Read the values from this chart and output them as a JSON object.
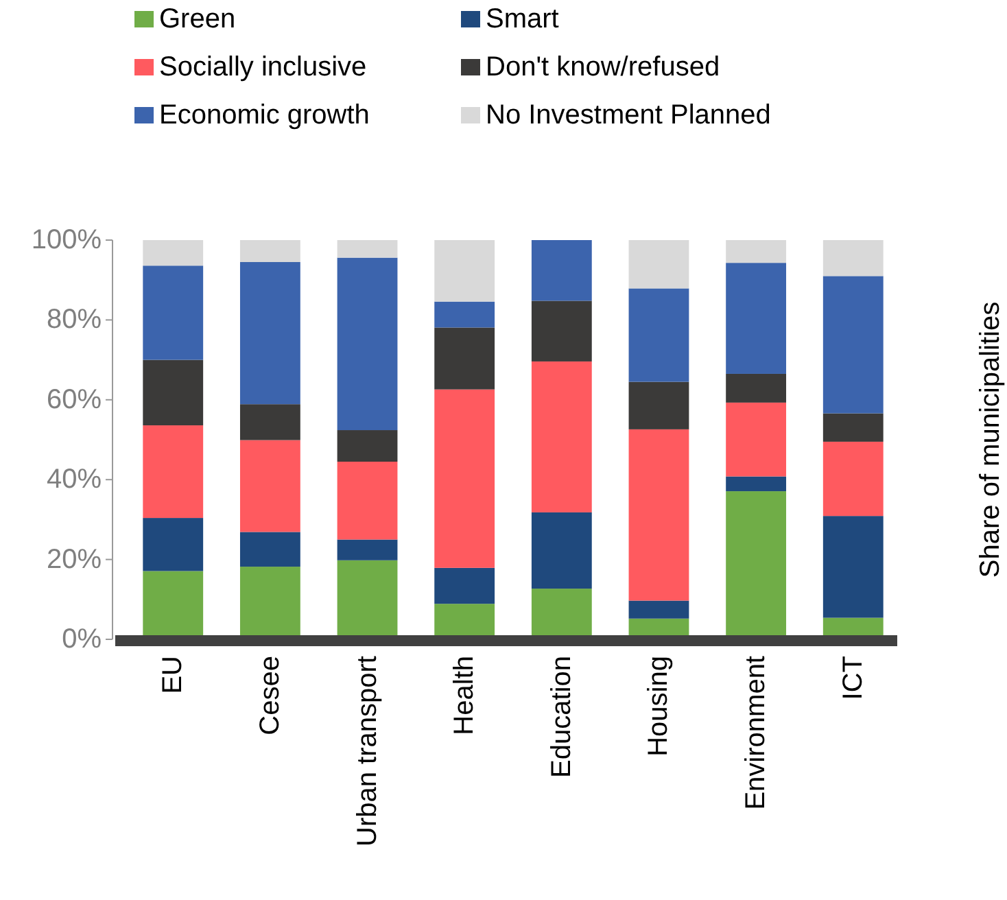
{
  "chart_data": {
    "type": "bar",
    "stacked": true,
    "ylabel": "Share of municipalities",
    "categories": [
      "EU",
      "Cesee",
      "Urban transport",
      "Health",
      "Education",
      "Housing",
      "Environment",
      "ICT"
    ],
    "series": [
      {
        "name": "Green",
        "color": "#70ad47",
        "values": [
          17.1,
          18.2,
          19.8,
          8.9,
          12.7,
          5.2,
          37.1,
          5.4
        ]
      },
      {
        "name": "Smart",
        "color": "#1f497d",
        "values": [
          13.3,
          8.7,
          5.2,
          9.0,
          19.1,
          4.5,
          3.7,
          25.5
        ]
      },
      {
        "name": "Socially inclusive",
        "color": "#ff5a5f",
        "values": [
          23.2,
          23.0,
          19.5,
          44.7,
          37.8,
          42.9,
          18.5,
          18.6
        ]
      },
      {
        "name": "Don't know/refused",
        "color": "#3b3a39",
        "values": [
          16.4,
          9.0,
          7.9,
          15.5,
          15.2,
          11.9,
          7.2,
          7.1
        ]
      },
      {
        "name": "Economic growth",
        "color": "#3c64ad",
        "values": [
          23.6,
          35.6,
          43.2,
          6.5,
          15.2,
          23.4,
          27.8,
          34.4
        ]
      },
      {
        "name": "No Investment Planned",
        "color": "#d9d9d9",
        "values": [
          6.4,
          5.5,
          4.4,
          15.4,
          0,
          12.1,
          5.7,
          9.0
        ]
      }
    ],
    "ylim": [
      0,
      100
    ],
    "yticks": [
      {
        "value": 0,
        "label": "0%"
      },
      {
        "value": 20,
        "label": "20%"
      },
      {
        "value": 40,
        "label": "40%"
      },
      {
        "value": 60,
        "label": "60%"
      },
      {
        "value": 80,
        "label": "80%"
      },
      {
        "value": 100,
        "label": "100%"
      }
    ],
    "legend": "top",
    "grid": false
  }
}
